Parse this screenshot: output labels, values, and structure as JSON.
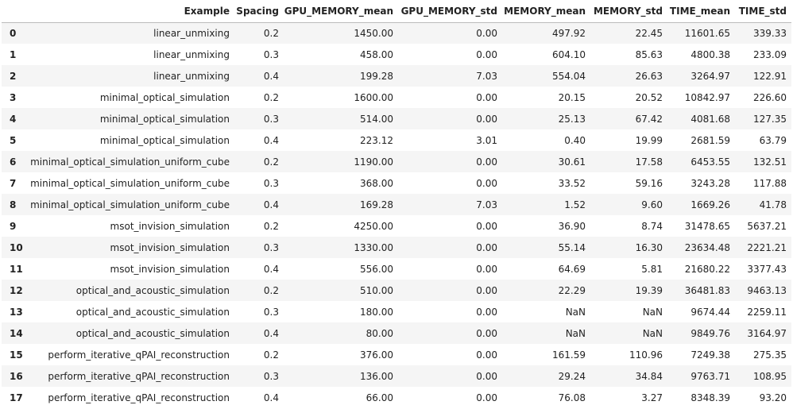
{
  "table": {
    "columns": [
      "",
      "Example",
      "Spacing",
      "GPU_MEMORY_mean",
      "GPU_MEMORY_std",
      "MEMORY_mean",
      "MEMORY_std",
      "TIME_mean",
      "TIME_std"
    ],
    "rows": [
      [
        "0",
        "linear_unmixing",
        "0.2",
        "1450.00",
        "0.00",
        "497.92",
        "22.45",
        "11601.65",
        "339.33"
      ],
      [
        "1",
        "linear_unmixing",
        "0.3",
        "458.00",
        "0.00",
        "604.10",
        "85.63",
        "4800.38",
        "233.09"
      ],
      [
        "2",
        "linear_unmixing",
        "0.4",
        "199.28",
        "7.03",
        "554.04",
        "26.63",
        "3264.97",
        "122.91"
      ],
      [
        "3",
        "minimal_optical_simulation",
        "0.2",
        "1600.00",
        "0.00",
        "20.15",
        "20.52",
        "10842.97",
        "226.60"
      ],
      [
        "4",
        "minimal_optical_simulation",
        "0.3",
        "514.00",
        "0.00",
        "25.13",
        "67.42",
        "4081.68",
        "127.35"
      ],
      [
        "5",
        "minimal_optical_simulation",
        "0.4",
        "223.12",
        "3.01",
        "0.40",
        "19.99",
        "2681.59",
        "63.79"
      ],
      [
        "6",
        "minimal_optical_simulation_uniform_cube",
        "0.2",
        "1190.00",
        "0.00",
        "30.61",
        "17.58",
        "6453.55",
        "132.51"
      ],
      [
        "7",
        "minimal_optical_simulation_uniform_cube",
        "0.3",
        "368.00",
        "0.00",
        "33.52",
        "59.16",
        "3243.28",
        "117.88"
      ],
      [
        "8",
        "minimal_optical_simulation_uniform_cube",
        "0.4",
        "169.28",
        "7.03",
        "1.52",
        "9.60",
        "1669.26",
        "41.78"
      ],
      [
        "9",
        "msot_invision_simulation",
        "0.2",
        "4250.00",
        "0.00",
        "36.90",
        "8.74",
        "31478.65",
        "5637.21"
      ],
      [
        "10",
        "msot_invision_simulation",
        "0.3",
        "1330.00",
        "0.00",
        "55.14",
        "16.30",
        "23634.48",
        "2221.21"
      ],
      [
        "11",
        "msot_invision_simulation",
        "0.4",
        "556.00",
        "0.00",
        "64.69",
        "5.81",
        "21680.22",
        "3377.43"
      ],
      [
        "12",
        "optical_and_acoustic_simulation",
        "0.2",
        "510.00",
        "0.00",
        "22.29",
        "19.39",
        "36481.83",
        "9463.13"
      ],
      [
        "13",
        "optical_and_acoustic_simulation",
        "0.3",
        "180.00",
        "0.00",
        "NaN",
        "NaN",
        "9674.44",
        "2259.11"
      ],
      [
        "14",
        "optical_and_acoustic_simulation",
        "0.4",
        "80.00",
        "0.00",
        "NaN",
        "NaN",
        "9849.76",
        "3164.97"
      ],
      [
        "15",
        "perform_iterative_qPAI_reconstruction",
        "0.2",
        "376.00",
        "0.00",
        "161.59",
        "110.96",
        "7249.38",
        "275.35"
      ],
      [
        "16",
        "perform_iterative_qPAI_reconstruction",
        "0.3",
        "136.00",
        "0.00",
        "29.24",
        "34.84",
        "9763.71",
        "108.95"
      ],
      [
        "17",
        "perform_iterative_qPAI_reconstruction",
        "0.4",
        "66.00",
        "0.00",
        "76.08",
        "3.27",
        "8348.39",
        "93.20"
      ]
    ]
  }
}
